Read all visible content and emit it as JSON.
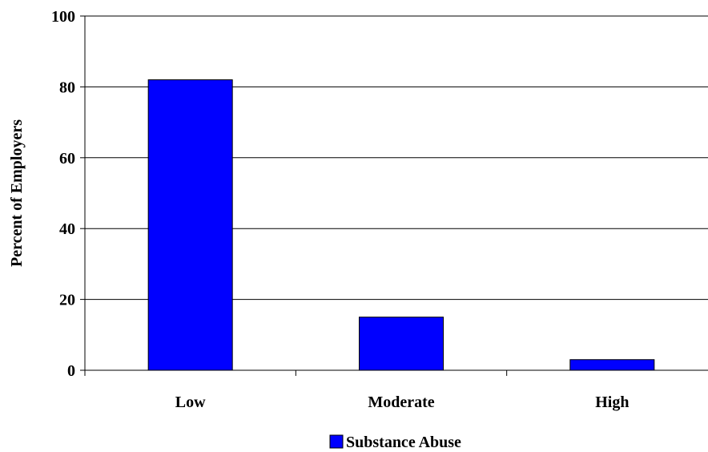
{
  "chart_data": {
    "type": "bar",
    "categories": [
      "Low",
      "Moderate",
      "High"
    ],
    "series": [
      {
        "name": "Substance Abuse",
        "values": [
          82,
          15,
          3
        ],
        "color": "#0000ff"
      }
    ],
    "ylabel": "Percent of Employers",
    "xlabel": "",
    "ylim": [
      0,
      100
    ],
    "yticks": [
      0,
      20,
      40,
      60,
      80,
      100
    ],
    "grid": "horizontal",
    "legend": "bottom-center"
  }
}
